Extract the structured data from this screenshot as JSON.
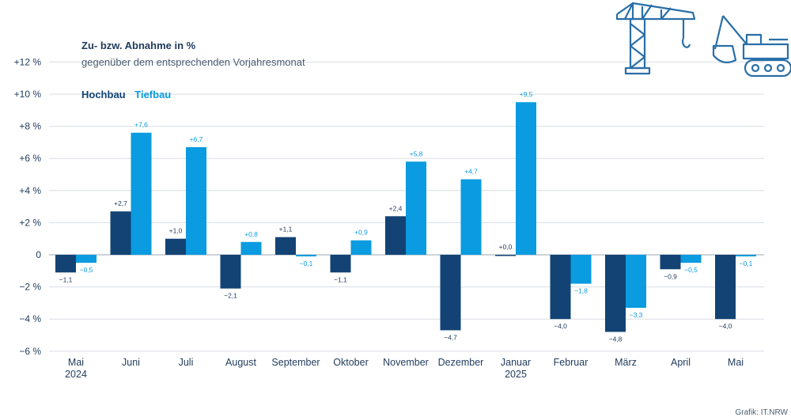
{
  "chart_data": {
    "type": "bar",
    "title": "Zu- bzw. Abnahme in %",
    "subtitle": "gegenüber dem entsprechenden Vorjahresmonat",
    "categories": [
      [
        "Mai",
        "2024"
      ],
      [
        "Juni"
      ],
      [
        "Juli"
      ],
      [
        "August"
      ],
      [
        "September"
      ],
      [
        "Oktober"
      ],
      [
        "November"
      ],
      [
        "Dezember"
      ],
      [
        "Januar",
        "2025"
      ],
      [
        "Februar"
      ],
      [
        "März"
      ],
      [
        "April"
      ],
      [
        "Mai"
      ]
    ],
    "series": [
      {
        "name": "Hochbau",
        "color": "#124374",
        "values": [
          -1.1,
          2.7,
          1.0,
          -2.1,
          1.1,
          -1.1,
          2.4,
          -4.7,
          0.0,
          -4.0,
          -4.8,
          -0.9,
          -4.0
        ],
        "labels": [
          "−1,1",
          "+2,7",
          "+1,0",
          "−2,1",
          "+1,1",
          "−1,1",
          "+2,4",
          "−4,7",
          "+0,0",
          "−4,0",
          "−4,8",
          "−0,9",
          "−4,0"
        ]
      },
      {
        "name": "Tiefbau",
        "color": "#0a9be0",
        "values": [
          -0.5,
          7.6,
          6.7,
          0.8,
          -0.1,
          0.9,
          5.8,
          4.7,
          9.5,
          -1.8,
          -3.3,
          -0.5,
          -0.1
        ],
        "labels": [
          "−0,5",
          "+7,6",
          "+6,7",
          "+0,8",
          "−0,1",
          "+0,9",
          "+5,8",
          "+4,7",
          "+9,5",
          "−1,8",
          "−3,3",
          "−0,5",
          "−0,1"
        ]
      }
    ],
    "yticks": [
      12,
      10,
      8,
      6,
      4,
      2,
      0,
      -2,
      -4,
      -6
    ],
    "ytick_labels": [
      "+12 %",
      "+10 %",
      "+8 %",
      "+6 %",
      "+4 %",
      "+2 %",
      "0",
      "−2 %",
      "−4 %",
      "−6 %"
    ],
    "ylim": [
      -6,
      12
    ],
    "grid": true,
    "legend_position": "top-left",
    "credit": "Grafik: IT.NRW"
  },
  "icons": {
    "crane": "crane-icon",
    "excavator": "excavator-icon",
    "color": "#2a6fa8"
  }
}
